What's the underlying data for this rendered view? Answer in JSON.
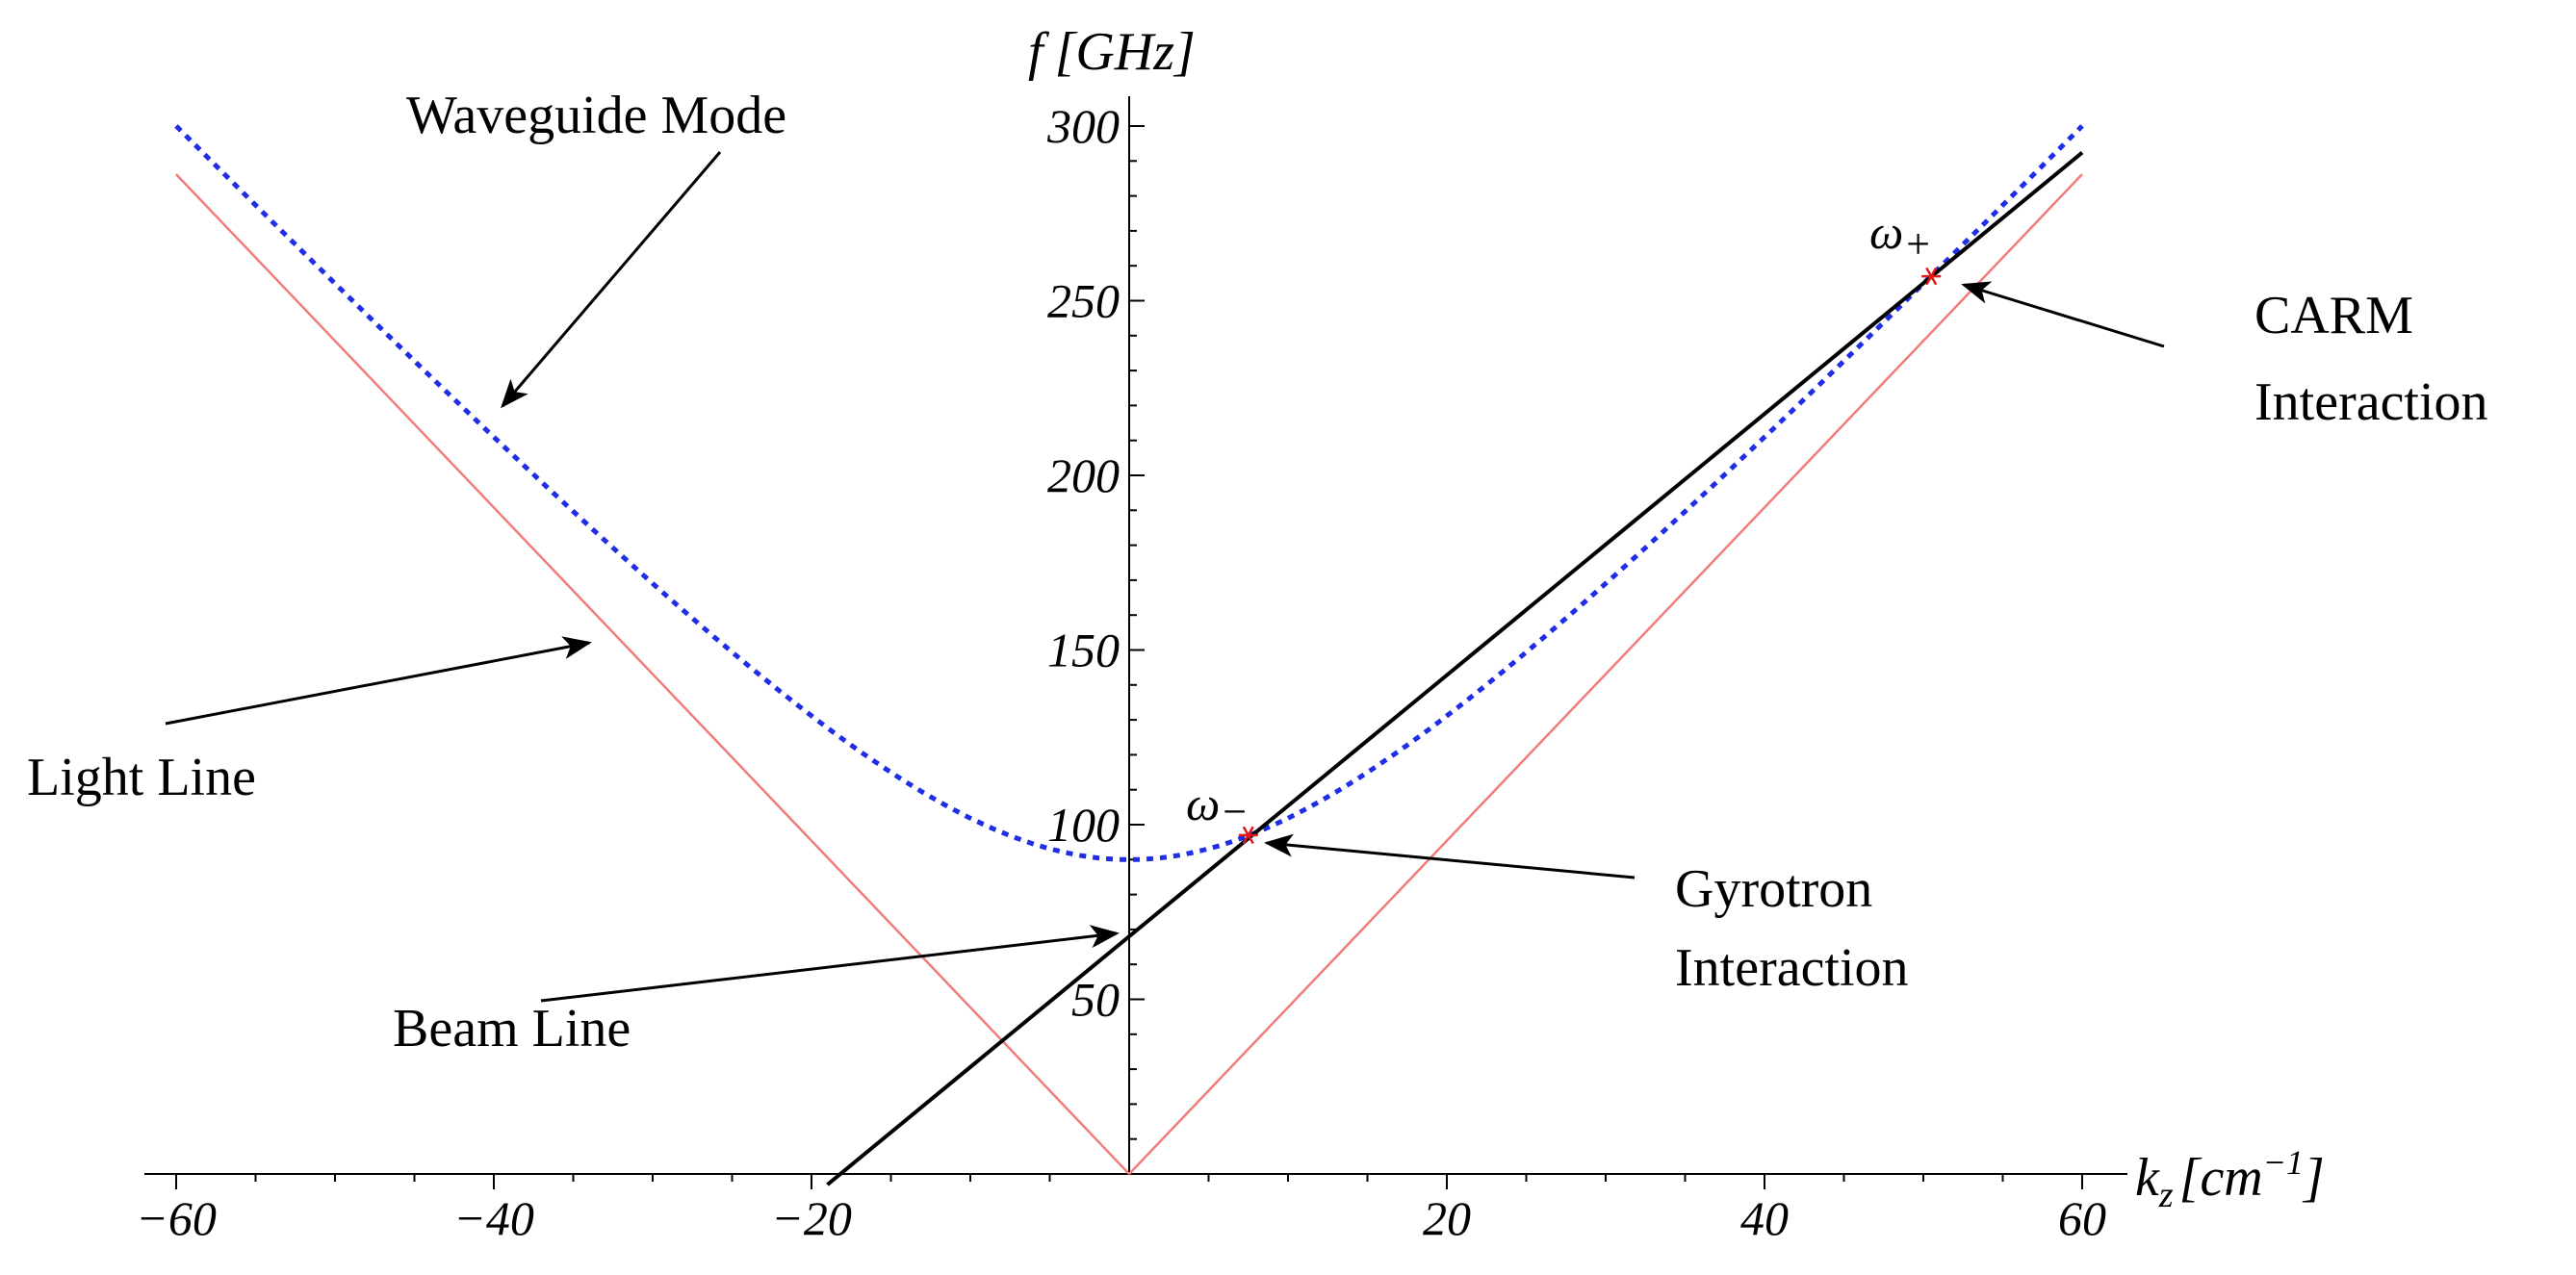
{
  "chart_data": {
    "type": "line",
    "title": "",
    "xlabel": {
      "base": "k",
      "sub": "z",
      "unit_open": "[cm",
      "unit_sup": "−1",
      "unit_close": "]"
    },
    "ylabel": {
      "symbol": "f",
      "unit": "[GHz]"
    },
    "xlim": [
      -60,
      60
    ],
    "ylim": [
      0,
      300
    ],
    "x_ticks": [
      -60,
      -40,
      -20,
      20,
      40,
      60
    ],
    "x_tick_labels": [
      "−60",
      "−40",
      "−20",
      "20",
      "40",
      "60"
    ],
    "y_ticks": [
      50,
      100,
      150,
      200,
      250,
      300
    ],
    "y_tick_labels": [
      "50",
      "100",
      "150",
      "200",
      "250",
      "300"
    ],
    "grid": false,
    "series": [
      {
        "name": "Waveguide Mode",
        "style": "dotted",
        "color": "#1f2ee6",
        "cutoff_ghz": 90,
        "light_slope_ghz_per_cm": 4.77
      },
      {
        "name": "Light Line",
        "style": "solid",
        "color": "#f27b7b",
        "slope_ghz_per_cm": 4.77
      },
      {
        "name": "Beam Line",
        "style": "solid",
        "color": "#000000",
        "intercept_ghz": 68,
        "slope_ghz_per_cm": 3.74,
        "x_range": [
          -19,
          60
        ]
      }
    ],
    "points": [
      {
        "name": "omega-minus",
        "label_base": "ω",
        "label_sub": "−",
        "x": 7.5,
        "y": 97,
        "color": "#e01a1a"
      },
      {
        "name": "omega-plus",
        "label_base": "ω",
        "label_sub": "+",
        "x": 50.5,
        "y": 257,
        "color": "#e01a1a"
      }
    ],
    "annotations": [
      {
        "name": "waveguide-mode",
        "text": "Waveguide Mode"
      },
      {
        "name": "light-line",
        "text": "Light Line"
      },
      {
        "name": "beam-line",
        "text": "Beam Line"
      },
      {
        "name": "gyrotron",
        "lines": [
          "Gyrotron",
          "Interaction"
        ]
      },
      {
        "name": "carm",
        "lines": [
          "CARM",
          "Interaction"
        ]
      }
    ]
  }
}
